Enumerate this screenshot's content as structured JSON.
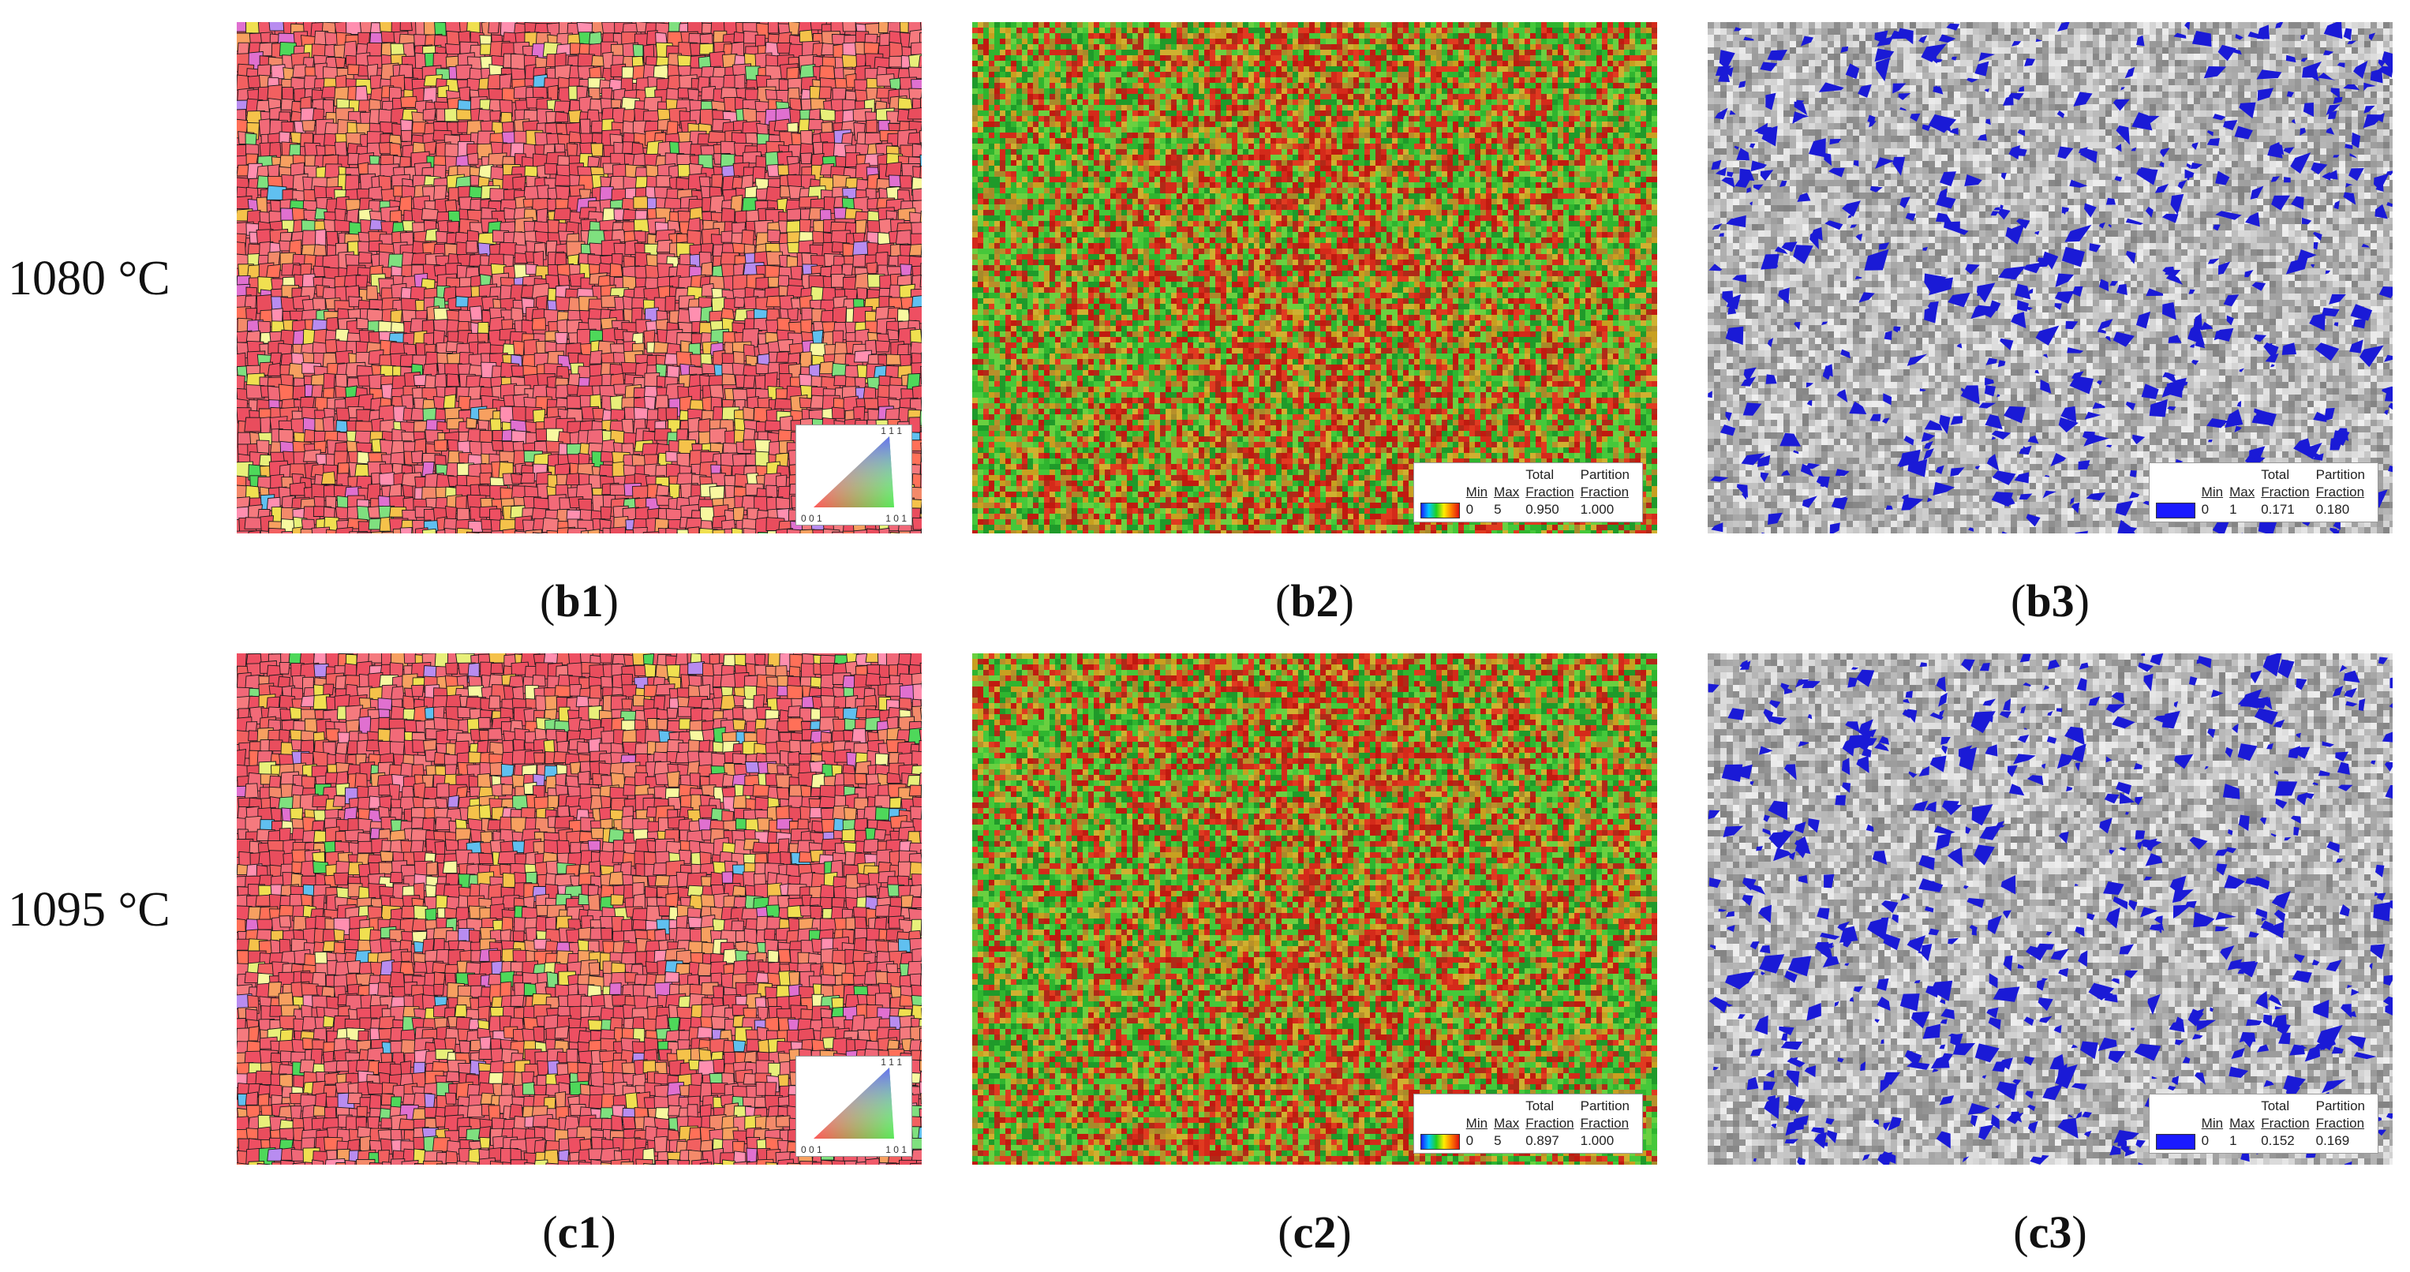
{
  "rows": [
    {
      "label": "1080 °C"
    },
    {
      "label": "1095 °C"
    }
  ],
  "panels": {
    "b1": {
      "caption_open": "(",
      "caption_id": "b1",
      "caption_close": ")",
      "map": "ipf",
      "key": {
        "top": "1 1 1",
        "left": "0 0 1",
        "right": "1 0 1"
      }
    },
    "b2": {
      "caption_open": "(",
      "caption_id": "b2",
      "caption_close": ")",
      "map": "kam",
      "legend": {
        "h_total": "Total",
        "h_partition": "Partition",
        "h_min": "Min",
        "h_max": "Max",
        "h_fraction1": "Fraction",
        "h_fraction2": "Fraction",
        "min": "0",
        "max": "5",
        "total_fraction": "0.950",
        "partition_fraction": "1.000"
      }
    },
    "b3": {
      "caption_open": "(",
      "caption_id": "b3",
      "caption_close": ")",
      "map": "phase",
      "legend": {
        "h_total": "Total",
        "h_partition": "Partition",
        "h_min": "Min",
        "h_max": "Max",
        "h_fraction1": "Fraction",
        "h_fraction2": "Fraction",
        "min": "0",
        "max": "1",
        "total_fraction": "0.171",
        "partition_fraction": "0.180"
      }
    },
    "c1": {
      "caption_open": "(",
      "caption_id": "c1",
      "caption_close": ")",
      "map": "ipf",
      "key": {
        "top": "1 1 1",
        "left": "0 0 1",
        "right": "1 0 1"
      }
    },
    "c2": {
      "caption_open": "(",
      "caption_id": "c2",
      "caption_close": ")",
      "map": "kam",
      "legend": {
        "h_total": "Total",
        "h_partition": "Partition",
        "h_min": "Min",
        "h_max": "Max",
        "h_fraction1": "Fraction",
        "h_fraction2": "Fraction",
        "min": "0",
        "max": "5",
        "total_fraction": "0.897",
        "partition_fraction": "1.000"
      }
    },
    "c3": {
      "caption_open": "(",
      "caption_id": "c3",
      "caption_close": ")",
      "map": "phase",
      "legend": {
        "h_total": "Total",
        "h_partition": "Partition",
        "h_min": "Min",
        "h_max": "Max",
        "h_fraction1": "Fraction",
        "h_fraction2": "Fraction",
        "min": "0",
        "max": "1",
        "total_fraction": "0.152",
        "partition_fraction": "0.169"
      }
    }
  },
  "colors": {
    "ipf_dominant": "#f05a6a",
    "kam_low": "#2fb52f",
    "kam_high": "#d42a1a",
    "phase_gray": "#b8b8b8",
    "phase_blue": "#1a1ad6"
  }
}
